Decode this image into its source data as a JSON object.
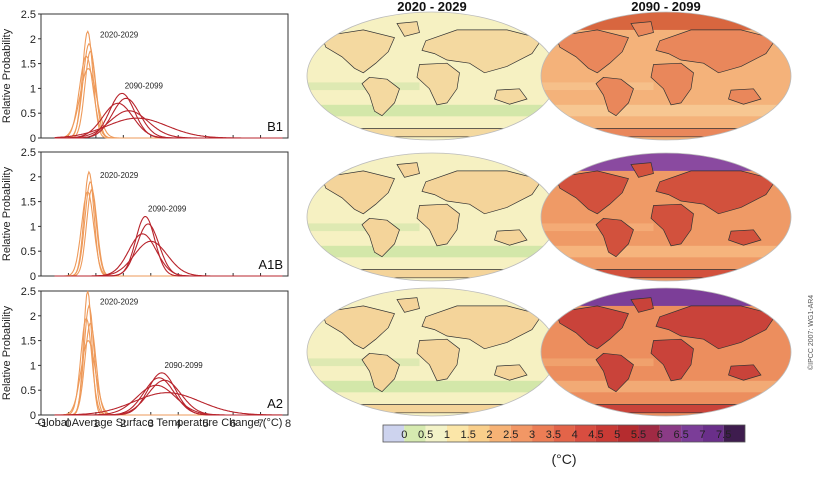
{
  "chart_data": {
    "type": "line",
    "xlabel": "Global Average Surface Temperature Change (°C)",
    "ylabel": "Relative Probability",
    "xlim": [
      -1,
      8
    ],
    "ylim": [
      0,
      2.5
    ],
    "x_ticks": [
      "−1",
      "0",
      "1",
      "2",
      "3",
      "4",
      "5",
      "6",
      "7",
      "8"
    ],
    "y_ticks": [
      "0",
      "0.5",
      "1",
      "1.5",
      "2",
      "2.5"
    ],
    "panels": [
      {
        "scenario": "B1",
        "label_2020": "2020-2029",
        "label_2090": "2090-2099",
        "series_2020": [
          {
            "mu": 0.7,
            "sd": 0.19,
            "peak": 2.15
          },
          {
            "mu": 0.75,
            "sd": 0.22,
            "peak": 1.9
          },
          {
            "mu": 0.65,
            "sd": 0.25,
            "peak": 1.65
          },
          {
            "mu": 0.8,
            "sd": 0.2,
            "peak": 1.75
          },
          {
            "mu": 0.72,
            "sd": 0.3,
            "peak": 1.4
          }
        ],
        "series_2090": [
          {
            "mu": 1.95,
            "sd": 0.45,
            "peak": 0.9
          },
          {
            "mu": 2.1,
            "sd": 0.5,
            "peak": 0.8
          },
          {
            "mu": 1.8,
            "sd": 0.55,
            "peak": 0.7
          },
          {
            "mu": 2.2,
            "sd": 0.7,
            "peak": 0.55
          },
          {
            "mu": 2.5,
            "sd": 1.1,
            "peak": 0.4
          }
        ]
      },
      {
        "scenario": "A1B",
        "label_2020": "2020-2029",
        "label_2090": "2090-2099",
        "series_2020": [
          {
            "mu": 0.75,
            "sd": 0.18,
            "peak": 2.1
          },
          {
            "mu": 0.8,
            "sd": 0.2,
            "peak": 1.9
          },
          {
            "mu": 0.7,
            "sd": 0.22,
            "peak": 1.7
          },
          {
            "mu": 0.85,
            "sd": 0.19,
            "peak": 1.75
          }
        ],
        "series_2090": [
          {
            "mu": 2.8,
            "sd": 0.35,
            "peak": 1.2
          },
          {
            "mu": 2.9,
            "sd": 0.4,
            "peak": 1.05
          },
          {
            "mu": 2.7,
            "sd": 0.5,
            "peak": 0.85
          },
          {
            "mu": 3.0,
            "sd": 0.6,
            "peak": 0.7
          }
        ]
      },
      {
        "scenario": "A2",
        "label_2020": "2020-2029",
        "label_2090": "2090-2099",
        "series_2020": [
          {
            "mu": 0.7,
            "sd": 0.15,
            "peak": 2.5
          },
          {
            "mu": 0.75,
            "sd": 0.18,
            "peak": 2.2
          },
          {
            "mu": 0.65,
            "sd": 0.2,
            "peak": 1.95
          },
          {
            "mu": 0.8,
            "sd": 0.2,
            "peak": 1.85
          },
          {
            "mu": 0.72,
            "sd": 0.26,
            "peak": 1.5
          }
        ],
        "series_2090": [
          {
            "mu": 3.4,
            "sd": 0.5,
            "peak": 0.85
          },
          {
            "mu": 3.3,
            "sd": 0.55,
            "peak": 0.75
          },
          {
            "mu": 3.5,
            "sd": 0.6,
            "peak": 0.7
          },
          {
            "mu": 3.2,
            "sd": 0.7,
            "peak": 0.6
          },
          {
            "mu": 3.6,
            "sd": 1.2,
            "peak": 0.45
          }
        ]
      }
    ],
    "maps": {
      "column_labels": [
        "2020 - 2029",
        "2090 - 2099"
      ],
      "colorbar_ticks": [
        "0",
        "0.5",
        "1",
        "1.5",
        "2",
        "2.5",
        "3",
        "3.5",
        "4",
        "4.5",
        "5",
        "5.5",
        "6",
        "6.5",
        "7",
        "7.5"
      ],
      "colorbar_unit": "(°C)",
      "colorbar_colors": [
        "#cdd3ee",
        "#d6eab0",
        "#f3f3c8",
        "#fbe6a8",
        "#f9cf8b",
        "#f6b275",
        "#f29765",
        "#ec7d55",
        "#e36449",
        "#d84d40",
        "#c93a35",
        "#b52c2f",
        "#a02a44",
        "#8a3b86",
        "#7b3d98",
        "#6a2f8a",
        "#3e1c4e"
      ],
      "rows": [
        {
          "scenario": "B1",
          "early": {
            "base": "#f6f1c2",
            "land": "#f4d9a0",
            "cool": "#cfe5a6"
          },
          "late": {
            "base": "#f4b27a",
            "land": "#e9875b",
            "cool": "#f7c995",
            "pole": "#d8663f"
          }
        },
        {
          "scenario": "A1B",
          "early": {
            "base": "#f6f1c2",
            "land": "#f4d49a",
            "cool": "#cfe5a6"
          },
          "late": {
            "base": "#ef9a66",
            "land": "#d2513d",
            "cool": "#f6b780",
            "pole": "#8a4aa0"
          }
        },
        {
          "scenario": "A2",
          "early": {
            "base": "#f6f1c2",
            "land": "#f4d49a",
            "cool": "#cfe5a6"
          },
          "late": {
            "base": "#ec8e5e",
            "land": "#c9433a",
            "cool": "#f3ad78",
            "pole": "#7c3e98"
          }
        }
      ]
    },
    "colors": {
      "early_curves": "#ee9a5a",
      "late_curves": "#b8242c"
    }
  },
  "credit": "©IPCC 2007: WG1-AR4"
}
